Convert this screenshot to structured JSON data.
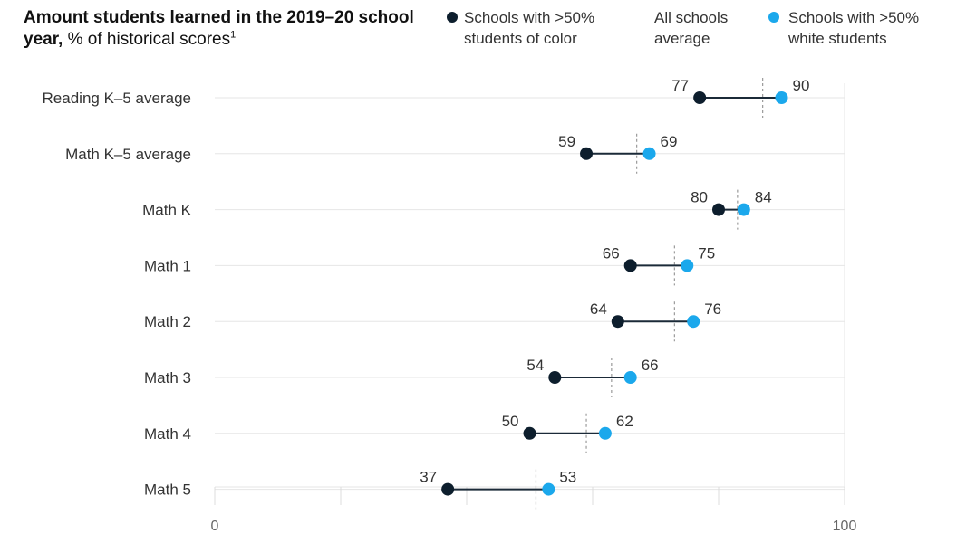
{
  "title": {
    "bold": "Amount students learned in the 2019–20 school year,",
    "normal": " % of historical scores",
    "footnote": "1"
  },
  "legend": {
    "color_schools": "Schools with >50%\nstudents of color",
    "average": "All schools\naverage",
    "white_schools": "Schools with >50%\nwhite students"
  },
  "colors": {
    "students_of_color": "#0d1e2d",
    "white_students": "#1ba8ec",
    "connector": "#1b2a38",
    "average_dash": "#9a9a9a",
    "gridline": "#e6e6e6"
  },
  "chart_data": {
    "type": "dumbbell",
    "xlim": [
      0,
      100
    ],
    "xticks": [
      0,
      100
    ],
    "grid": true,
    "legend_position": "top",
    "categories": [
      "Reading K–5 average",
      "Math K–5 average",
      "Math K",
      "Math 1",
      "Math 2",
      "Math 3",
      "Math 4",
      "Math 5"
    ],
    "series": [
      {
        "name": "Schools with >50% students of color",
        "values": [
          77,
          59,
          80,
          66,
          64,
          54,
          50,
          37
        ]
      },
      {
        "name": "Schools with >50% white students",
        "values": [
          90,
          69,
          84,
          75,
          76,
          66,
          62,
          53
        ]
      },
      {
        "name": "All schools average",
        "values": [
          87,
          67,
          83,
          73,
          73,
          63,
          59,
          51
        ]
      }
    ]
  }
}
